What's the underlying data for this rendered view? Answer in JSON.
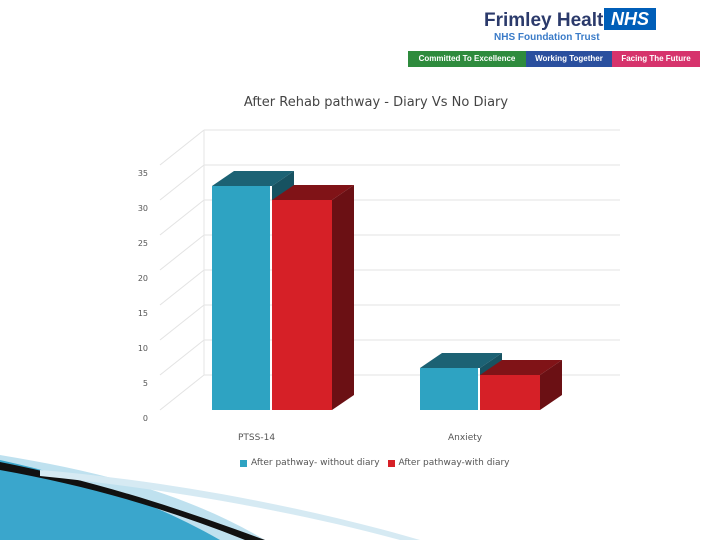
{
  "header": {
    "org_name": "Frimley Health",
    "nhs_badge": "NHS",
    "org_subtitle": "NHS Foundation Trust",
    "values": [
      {
        "label": "Committed To Excellence",
        "color": "#2e8b3d"
      },
      {
        "label": "Working Together",
        "color": "#2a4f9e"
      },
      {
        "label": "Facing The Future",
        "color": "#d6336c"
      }
    ]
  },
  "chart_data": {
    "type": "bar",
    "style": "3d",
    "title": "After Rehab pathway - Diary Vs No Diary",
    "categories": [
      "PTSS-14",
      "Anxiety"
    ],
    "series": [
      {
        "name": "After pathway- without diary",
        "values": [
          32,
          6
        ],
        "color": "#2ea3c2"
      },
      {
        "name": "After pathway-with diary",
        "values": [
          30,
          5
        ],
        "color": "#d62027"
      }
    ],
    "ylim": [
      0,
      35
    ],
    "yticks": [
      "0",
      "5",
      "10",
      "15",
      "20",
      "25",
      "30",
      "35"
    ],
    "grid": true,
    "legend_position": "bottom"
  }
}
